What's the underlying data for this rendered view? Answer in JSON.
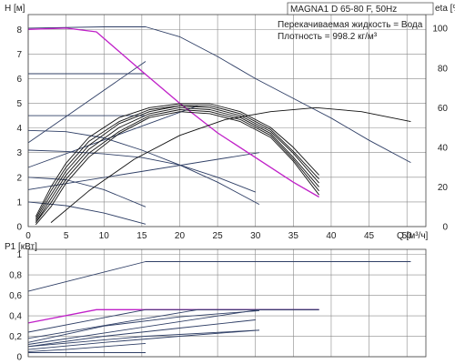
{
  "header": {
    "model_label": "MAGNA1 D 65-80 F, 50Hz",
    "fluid_label": "Перекачиваемая жидкость = Вода",
    "density_label": "Плотность = 998.2 кг/м³"
  },
  "colors": {
    "series": "#2f3f66",
    "highlight": "#c020c8",
    "efficiency": "#111111",
    "grid": "#8a8a8a"
  },
  "chart_data": [
    {
      "type": "line",
      "title": "MAGNA1 D 65-80 F, 50Hz",
      "xlabel": "Q [м³/ч]",
      "ylabel": "H [м]",
      "y2label": "eta [%]",
      "xlim": [
        0,
        52.5
      ],
      "ylim": [
        0,
        8.6
      ],
      "y2lim": [
        0,
        107
      ],
      "xticks": [
        0,
        5,
        10,
        15,
        20,
        25,
        30,
        35,
        40,
        45,
        50
      ],
      "yticks": [
        0,
        1,
        2,
        3,
        4,
        5,
        6,
        7,
        8
      ],
      "y2ticks": [
        0,
        20,
        40,
        60,
        80,
        100
      ],
      "grid": true,
      "series": [
        {
          "kind": "head",
          "x": [
            0,
            15.5
          ],
          "y": [
            6.2,
            6.2
          ]
        },
        {
          "kind": "head",
          "x": [
            0,
            2,
            4,
            6,
            8,
            10,
            12,
            14,
            15.5
          ],
          "y": [
            4.5,
            4.5,
            4.5,
            4.5,
            4.5,
            4.5,
            4.5,
            4.5,
            4.5
          ]
        },
        {
          "kind": "head",
          "x": [
            0,
            10,
            15.5,
            20,
            25,
            30,
            35,
            40,
            45,
            50.5
          ],
          "y": [
            8.05,
            8.1,
            8.1,
            7.7,
            6.9,
            6.0,
            5.2,
            4.4,
            3.5,
            2.6
          ]
        },
        {
          "kind": "head",
          "x": [
            0,
            5,
            10,
            15,
            20,
            25,
            30.5
          ],
          "y": [
            3.9,
            3.85,
            3.6,
            3.1,
            2.5,
            1.8,
            0.9
          ]
        },
        {
          "kind": "head",
          "x": [
            0,
            5,
            10,
            15,
            20,
            25,
            30
          ],
          "y": [
            3.1,
            3.05,
            2.95,
            2.8,
            2.5,
            2.0,
            1.4
          ]
        },
        {
          "kind": "head",
          "x": [
            0,
            5,
            10,
            15.5
          ],
          "y": [
            2.0,
            1.9,
            1.5,
            0.8
          ]
        },
        {
          "kind": "head",
          "x": [
            0,
            5,
            10,
            15.5
          ],
          "y": [
            1.0,
            0.85,
            0.55,
            0.1
          ]
        },
        {
          "kind": "control",
          "x": [
            0,
            15.5
          ],
          "y": [
            3.4,
            6.7
          ]
        },
        {
          "kind": "control",
          "x": [
            0,
            22.4
          ],
          "y": [
            2.4,
            4.9
          ]
        },
        {
          "kind": "control",
          "x": [
            0,
            30.5
          ],
          "y": [
            1.5,
            3.0
          ]
        },
        {
          "kind": "head_max",
          "x": [
            0,
            5,
            9,
            12,
            15,
            20,
            25,
            30,
            35,
            38.4
          ],
          "y": [
            8.0,
            8.05,
            7.9,
            7.1,
            6.3,
            5.0,
            3.8,
            2.8,
            1.8,
            1.2
          ]
        },
        {
          "kind": "efficiency",
          "x": [
            1,
            3,
            5,
            8,
            12,
            16,
            20,
            24,
            28,
            32,
            35,
            38.4
          ],
          "y2": [
            5,
            20,
            32,
            45,
            55,
            60,
            62,
            62,
            58,
            50,
            40,
            26
          ]
        },
        {
          "kind": "efficiency",
          "x": [
            1,
            3,
            5,
            8,
            12,
            16,
            20,
            24,
            28,
            32,
            35,
            38.4
          ],
          "y2": [
            4,
            18,
            30,
            43,
            53,
            59,
            61,
            61,
            57,
            49,
            38,
            24
          ]
        },
        {
          "kind": "efficiency",
          "x": [
            1,
            3,
            5,
            8,
            12,
            16,
            20,
            24,
            28,
            32,
            35,
            38.4
          ],
          "y2": [
            3,
            16,
            28,
            41,
            52,
            58,
            61,
            60,
            56,
            48,
            37,
            22
          ]
        },
        {
          "kind": "efficiency",
          "x": [
            1,
            3,
            5,
            8,
            12,
            16,
            20,
            24,
            28,
            32,
            35,
            38.4
          ],
          "y2": [
            2,
            14,
            26,
            39,
            50,
            57,
            60,
            59,
            55,
            47,
            35,
            20
          ]
        },
        {
          "kind": "efficiency",
          "x": [
            1,
            3,
            5,
            8,
            12,
            16,
            20,
            24,
            28,
            32,
            35,
            38.4
          ],
          "y2": [
            2,
            12,
            24,
            37,
            48,
            56,
            59,
            58,
            54,
            46,
            34,
            18
          ]
        },
        {
          "kind": "efficiency",
          "x": [
            1,
            3,
            5,
            8,
            12,
            16,
            20,
            24,
            28,
            32,
            35,
            38.4
          ],
          "y2": [
            1,
            10,
            22,
            35,
            47,
            55,
            58,
            57,
            53,
            45,
            33,
            16
          ]
        },
        {
          "kind": "efficiency",
          "x": [
            3,
            8,
            14,
            20,
            26,
            32,
            38,
            44,
            50.5
          ],
          "y2": [
            2,
            18,
            34,
            46,
            54,
            58,
            60,
            58,
            53
          ]
        }
      ]
    },
    {
      "type": "line",
      "xlabel": "",
      "ylabel": "P1 [кВт]",
      "xlim": [
        0,
        52.5
      ],
      "ylim": [
        0,
        1.05
      ],
      "yticks": [
        0,
        0.2,
        0.4,
        0.6,
        0.8,
        1
      ],
      "ytick_labels": [
        "0",
        "0,2",
        "0,4",
        "0,6",
        "0,8",
        "1"
      ],
      "grid": true,
      "series": [
        {
          "kind": "power",
          "x": [
            0,
            15.5,
            50.5
          ],
          "y": [
            0.64,
            0.93,
            0.93
          ]
        },
        {
          "kind": "power_max",
          "x": [
            0,
            9,
            38.4
          ],
          "y": [
            0.33,
            0.46,
            0.46
          ]
        },
        {
          "kind": "power",
          "x": [
            0,
            15.5,
            38.4
          ],
          "y": [
            0.24,
            0.46,
            0.46
          ]
        },
        {
          "kind": "power",
          "x": [
            0,
            22.4,
            38.4
          ],
          "y": [
            0.18,
            0.46,
            0.46
          ]
        },
        {
          "kind": "power",
          "x": [
            0,
            30.5,
            38.4
          ],
          "y": [
            0.12,
            0.46,
            0.46
          ]
        },
        {
          "kind": "power",
          "x": [
            0,
            10,
            20,
            30.5
          ],
          "y": [
            0.14,
            0.3,
            0.39,
            0.45
          ]
        },
        {
          "kind": "power",
          "x": [
            0,
            10,
            20,
            30
          ],
          "y": [
            0.1,
            0.2,
            0.28,
            0.36
          ]
        },
        {
          "kind": "power",
          "x": [
            0,
            10,
            20,
            30.5
          ],
          "y": [
            0.07,
            0.14,
            0.2,
            0.26
          ]
        },
        {
          "kind": "power",
          "x": [
            0,
            15.5,
            30.5
          ],
          "y": [
            0.1,
            0.2,
            0.26
          ]
        },
        {
          "kind": "power",
          "x": [
            0,
            5,
            15.5
          ],
          "y": [
            0.05,
            0.07,
            0.13
          ]
        },
        {
          "kind": "power",
          "x": [
            0,
            15.5
          ],
          "y": [
            0.04,
            0.04
          ]
        }
      ]
    }
  ]
}
